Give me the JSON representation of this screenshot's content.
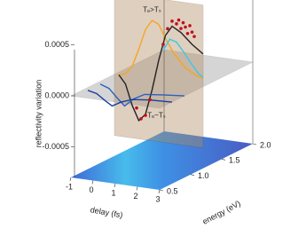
{
  "chart_data": {
    "type": "line3d",
    "zlabel": "reflectivity variation",
    "xlabel": "delay (fs)",
    "ylabel": "energy (eV)",
    "xlim": [
      -1,
      3
    ],
    "xticks": [
      -1,
      0,
      1,
      2,
      3
    ],
    "ylim": [
      0.5,
      2.0
    ],
    "yticks": [
      0.5,
      {
        "value": 1.0,
        "label": "1.0"
      },
      1.5,
      {
        "value": 2.0,
        "label": "2.0"
      }
    ],
    "zlim": [
      -0.0008,
      0.0008
    ],
    "zticks": [
      0.0005,
      {
        "value": 0,
        "label": "0.0000"
      },
      -0.0005
    ],
    "plane_energy": 1.2,
    "annotations": [
      {
        "text": "Tₑ>Tₛ",
        "x": 0.7,
        "z": 0.00068
      },
      {
        "text": "Tₑ~Tₛ",
        "x": 0.9,
        "z": -0.00035
      }
    ],
    "series": [
      {
        "color": "#f5a623",
        "energy": 1.2,
        "x": [
          -0.8,
          -0.5,
          -0.2,
          0.1,
          0.4,
          0.7,
          1.0,
          1.3,
          1.7,
          2.2,
          2.7,
          3.0
        ],
        "values": [
          0,
          2e-05,
          0.0001,
          0.00028,
          0.00048,
          0.00058,
          0.00055,
          0.00042,
          0.00028,
          0.00016,
          0.0001,
          8e-05
        ]
      },
      {
        "color": "#222222",
        "energy": 1.2,
        "x": [
          -0.8,
          -0.5,
          -0.2,
          0.1,
          0.4,
          0.7,
          1.0,
          1.3,
          1.6,
          2.0,
          2.5,
          3.0
        ],
        "values": [
          0,
          -8e-05,
          -0.00028,
          -0.00042,
          -0.00035,
          -0.0001,
          0.0002,
          0.00045,
          0.00055,
          0.0005,
          0.0004,
          0.00032
        ]
      },
      {
        "color": "#3cc8e8",
        "energy": 1.2,
        "x": [
          1.2,
          1.5,
          1.8,
          2.1,
          2.5,
          2.8,
          3.0
        ],
        "values": [
          0.0003,
          0.00042,
          0.0004,
          0.00032,
          0.0002,
          0.00012,
          9e-05
        ]
      },
      {
        "color": "#2a5fc0",
        "energy": 0.9,
        "x": [
          -0.8,
          -0.4,
          0,
          0.3,
          0.7,
          1.2,
          2.0,
          3.0
        ],
        "values": [
          0,
          -3e-05,
          -0.00012,
          -0.00018,
          -0.0001,
          -4e-05,
          -2e-05,
          0
        ]
      },
      {
        "color": "#1a3fa0",
        "energy": 0.7,
        "x": [
          -0.8,
          -0.4,
          0,
          0.3,
          0.7,
          1.2,
          2.0,
          3.0
        ],
        "values": [
          0,
          -2e-05,
          -8e-05,
          -0.00012,
          -7e-05,
          -3e-05,
          -1e-05,
          0
        ]
      }
    ],
    "points": {
      "color": "#c0101a",
      "energy": 1.2,
      "x": [
        0.0,
        0.2,
        0.4,
        0.6,
        1.2,
        1.4,
        1.6,
        1.8,
        1.9,
        2.0,
        2.1,
        2.2,
        2.3,
        2.4,
        2.5,
        2.6
      ],
      "values": [
        -0.0003,
        -0.0004,
        -0.00036,
        -0.0002,
        0.00036,
        0.00052,
        0.0006,
        0.00058,
        0.00062,
        0.00054,
        0.0006,
        0.00056,
        0.0005,
        0.00058,
        0.00052,
        0.00048
      ]
    }
  }
}
